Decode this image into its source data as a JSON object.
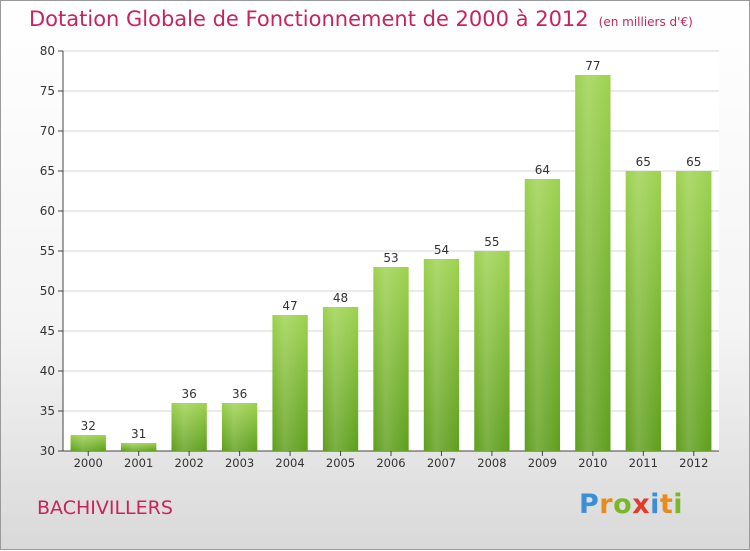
{
  "header": {
    "title": "Dotation Globale de Fonctionnement de 2000 à 2012",
    "unit": "(en milliers d'€)"
  },
  "footer": {
    "commune": "BACHIVILLERS",
    "logo_text": "Proxiti"
  },
  "colors": {
    "title": "#c8245a",
    "bar_top": "#9dd24f",
    "bar_bottom": "#5e9e1c",
    "logo_letters": [
      "#3a8fd6",
      "#e88a1c",
      "#7ab82a",
      "#e23a2a",
      "#3a8fd6",
      "#e88a1c",
      "#7ab82a"
    ]
  },
  "chart_data": {
    "type": "bar",
    "title": "Dotation Globale de Fonctionnement de 2000 à 2012",
    "subtitle": "(en milliers d'€)",
    "categories": [
      "2000",
      "2001",
      "2002",
      "2003",
      "2004",
      "2005",
      "2006",
      "2007",
      "2008",
      "2009",
      "2010",
      "2011",
      "2012"
    ],
    "values": [
      32,
      31,
      36,
      36,
      47,
      48,
      53,
      54,
      55,
      64,
      77,
      65,
      65
    ],
    "ylim": [
      30,
      80
    ],
    "yticks": [
      30,
      35,
      40,
      45,
      50,
      55,
      60,
      65,
      70,
      75,
      80
    ],
    "grid": true,
    "data_labels": true
  }
}
